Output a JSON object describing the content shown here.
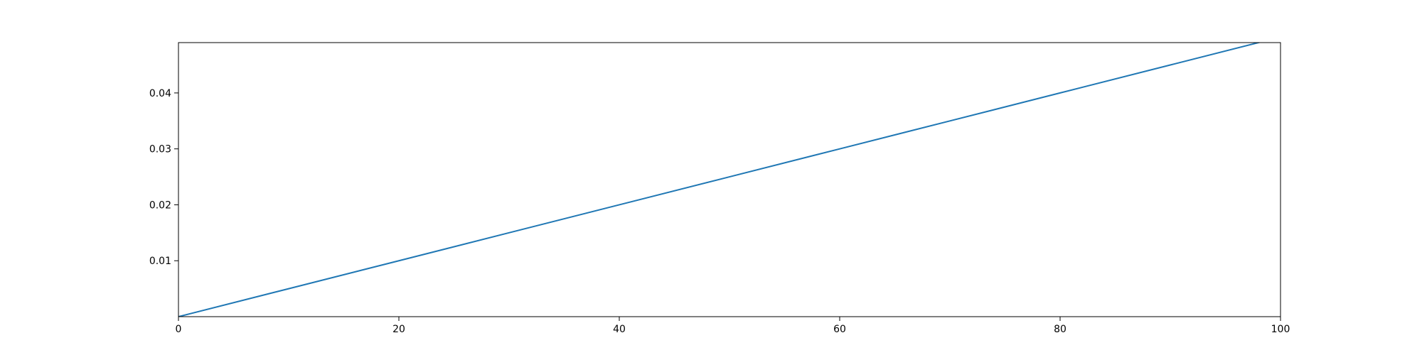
{
  "chart_data": {
    "type": "line",
    "title": "",
    "xlabel": "",
    "ylabel": "",
    "xlim": [
      0,
      100
    ],
    "ylim": [
      0,
      0.049
    ],
    "x_ticks": [
      {
        "value": 0,
        "label": "0"
      },
      {
        "value": 20,
        "label": "20"
      },
      {
        "value": 40,
        "label": "40"
      },
      {
        "value": 60,
        "label": "60"
      },
      {
        "value": 80,
        "label": "80"
      },
      {
        "value": 100,
        "label": "100"
      }
    ],
    "y_ticks": [
      {
        "value": 0.01,
        "label": "0.01"
      },
      {
        "value": 0.02,
        "label": "0.02"
      },
      {
        "value": 0.03,
        "label": "0.03"
      },
      {
        "value": 0.04,
        "label": "0.04"
      }
    ],
    "grid": false,
    "legend": false,
    "series": [
      {
        "color": "#1f77b4",
        "x": [
          0,
          10,
          20,
          30,
          40,
          50,
          60,
          70,
          80,
          90,
          99
        ],
        "y": [
          0,
          0.005,
          0.01,
          0.015,
          0.02,
          0.025,
          0.03,
          0.035,
          0.04,
          0.045,
          0.0495
        ]
      }
    ]
  }
}
